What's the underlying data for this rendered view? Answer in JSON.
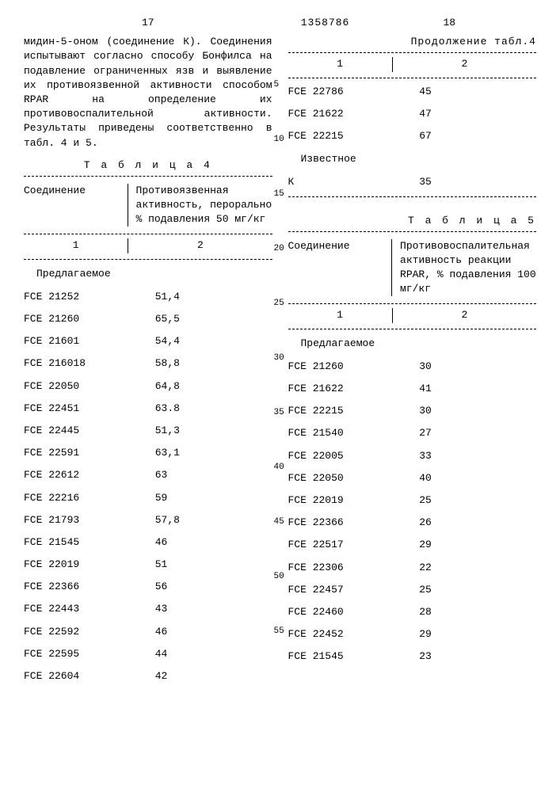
{
  "doc_number": "1358786",
  "left": {
    "page_num": "17",
    "paragraph": "мидин-5-оном (соединение К). Соединения испытывают согласно способу Бонфилса на подавление ограниченных язв и выявление их противоязвенной активности способом RPAR на определение их противовоспалительной активности. Результаты приведены соответственно в табл. 4 и 5.",
    "table4": {
      "title": "Т а б л и ц а  4",
      "col1": "Соединение",
      "col2": "Противоязвенная активность, перорально % подавления 50 мг/кг",
      "num1": "1",
      "num2": "2",
      "subhead": "Предлагаемое",
      "rows": [
        {
          "c": "FCE 21252",
          "v": "51,4"
        },
        {
          "c": "FCE 21260",
          "v": "65,5"
        },
        {
          "c": "FCE 21601",
          "v": "54,4"
        },
        {
          "c": "FCE 216018",
          "v": "58,8"
        },
        {
          "c": "FCE 22050",
          "v": "64,8"
        },
        {
          "c": "FCE 22451",
          "v": "63.8"
        },
        {
          "c": "FCE 22445",
          "v": "51,3"
        },
        {
          "c": "FCE 22591",
          "v": "63,1"
        },
        {
          "c": "FCE 22612",
          "v": "63"
        },
        {
          "c": "FCE 22216",
          "v": "59"
        },
        {
          "c": "FCE 21793",
          "v": "57,8"
        },
        {
          "c": "FCE 21545",
          "v": "46"
        },
        {
          "c": "FCE 22019",
          "v": "51"
        },
        {
          "c": "FCE 22366",
          "v": "56"
        },
        {
          "c": "FCE 22443",
          "v": "43"
        },
        {
          "c": "FCE 22592",
          "v": "46"
        },
        {
          "c": "FCE 22595",
          "v": "44"
        },
        {
          "c": "FCE 22604",
          "v": "42"
        }
      ]
    }
  },
  "right": {
    "page_num": "18",
    "table4_cont": {
      "title": "Продолжение табл.4",
      "num1": "1",
      "num2": "2",
      "rows": [
        {
          "c": "FCE 22786",
          "v": "45"
        },
        {
          "c": "FCE 21622",
          "v": "47"
        },
        {
          "c": "FCE 22215",
          "v": "67"
        }
      ],
      "subhead": "Известное",
      "rows2": [
        {
          "c": "К",
          "v": "35"
        }
      ]
    },
    "table5": {
      "title": "Т а б л и ц а  5",
      "col1": "Соединение",
      "col2": "Противовоспалительная активность реакции RPAR, % подавления 100 мг/кг",
      "num1": "1",
      "num2": "2",
      "subhead": "Предлагаемое",
      "rows": [
        {
          "c": "FCE 21260",
          "v": "30"
        },
        {
          "c": "FCE 21622",
          "v": "41"
        },
        {
          "c": "FCE 22215",
          "v": "30"
        },
        {
          "c": "FCE 21540",
          "v": "27"
        },
        {
          "c": "FCE 22005",
          "v": "33"
        },
        {
          "c": "FCE 22050",
          "v": "40"
        },
        {
          "c": "FCE 22019",
          "v": "25"
        },
        {
          "c": "FCE 22366",
          "v": "26"
        },
        {
          "c": "FCE 22517",
          "v": "29"
        },
        {
          "c": "FCE 22306",
          "v": "22"
        },
        {
          "c": "FCE 22457",
          "v": "25"
        },
        {
          "c": "FCE 22460",
          "v": "28"
        },
        {
          "c": "FCE 22452",
          "v": "29"
        },
        {
          "c": "FCE 21545",
          "v": "23"
        }
      ]
    }
  },
  "line_numbers": [
    "5",
    "10",
    "15",
    "20",
    "25",
    "30",
    "35",
    "40",
    "45",
    "50",
    "55"
  ]
}
